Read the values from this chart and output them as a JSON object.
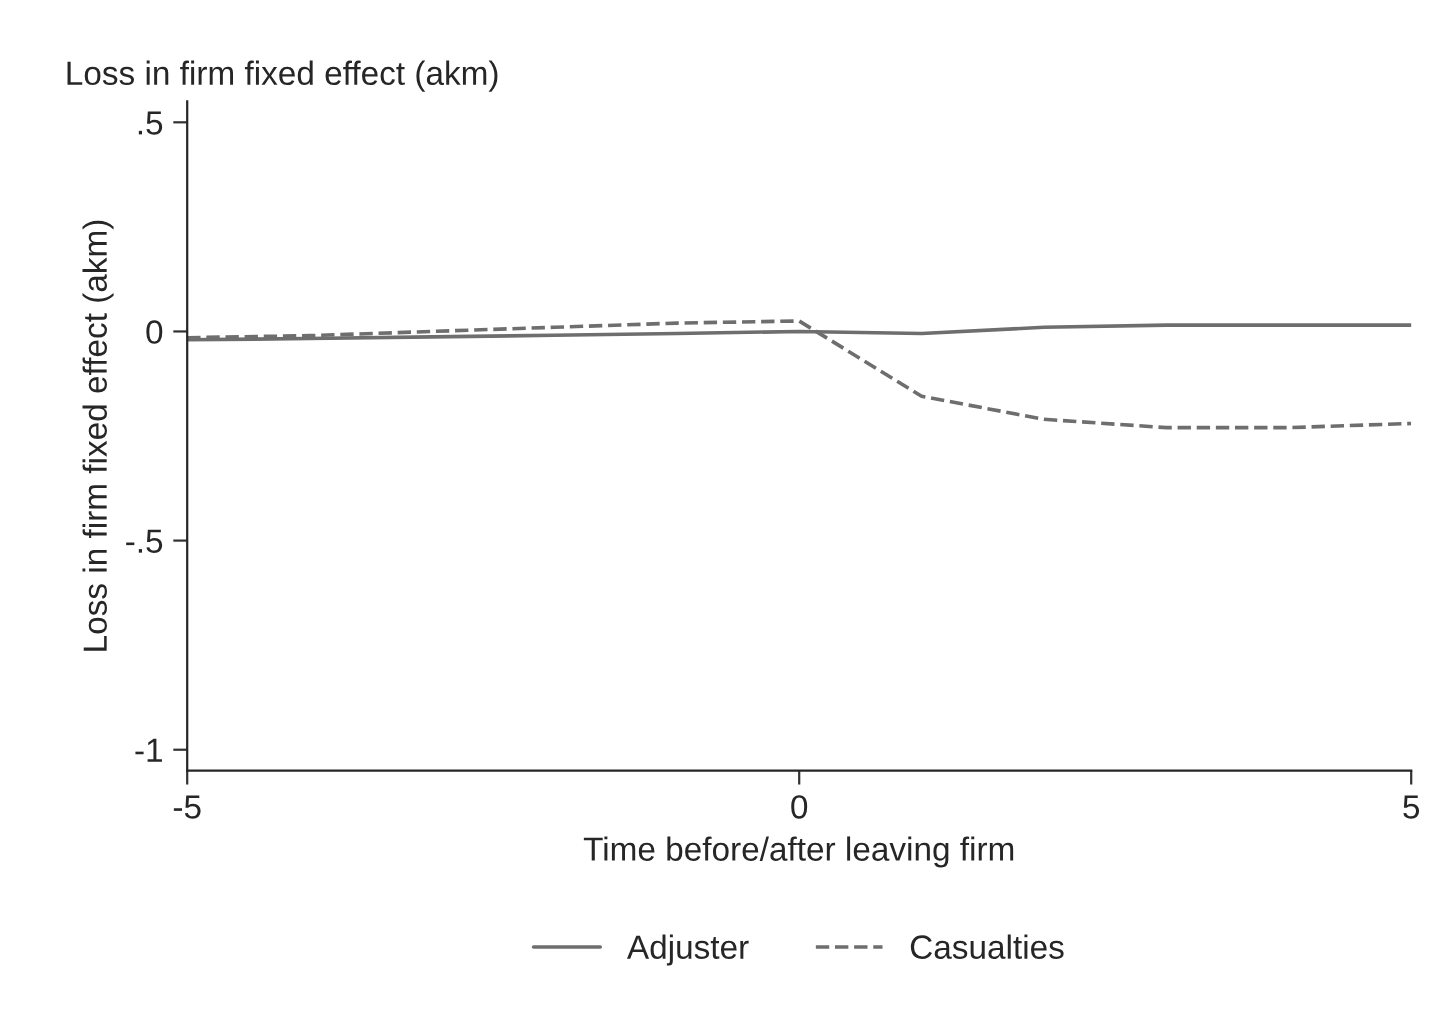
{
  "chart_data": {
    "type": "line",
    "title": "Loss in firm fixed effect (akm)",
    "xlabel": "Time before/after leaving firm",
    "ylabel": "Loss in firm fixed effect (akm)",
    "x": [
      -5,
      -4,
      -3,
      -2,
      -1,
      0,
      1,
      2,
      3,
      4,
      5
    ],
    "series": [
      {
        "name": "Adjuster",
        "color": "#6e6e6e",
        "line_style": "solid",
        "values": [
          -0.02,
          -0.017,
          -0.013,
          -0.009,
          -0.005,
          0.0,
          -0.005,
          0.01,
          0.015,
          0.015,
          0.015
        ]
      },
      {
        "name": "Casualties",
        "color": "#6e6e6e",
        "line_style": "dashed",
        "values": [
          -0.015,
          -0.01,
          0.0,
          0.01,
          0.02,
          0.025,
          -0.155,
          -0.21,
          -0.23,
          -0.23,
          -0.22
        ]
      }
    ],
    "xlim": [
      -5,
      5
    ],
    "xticks": [
      -5,
      0,
      5
    ],
    "ylim": [
      -1.05,
      0.55
    ],
    "yticks": [
      {
        "value": 0.5,
        "label": ".5"
      },
      0,
      {
        "value": -0.5,
        "label": "-.5"
      },
      -1
    ],
    "grid": false,
    "legend": "bottom"
  }
}
